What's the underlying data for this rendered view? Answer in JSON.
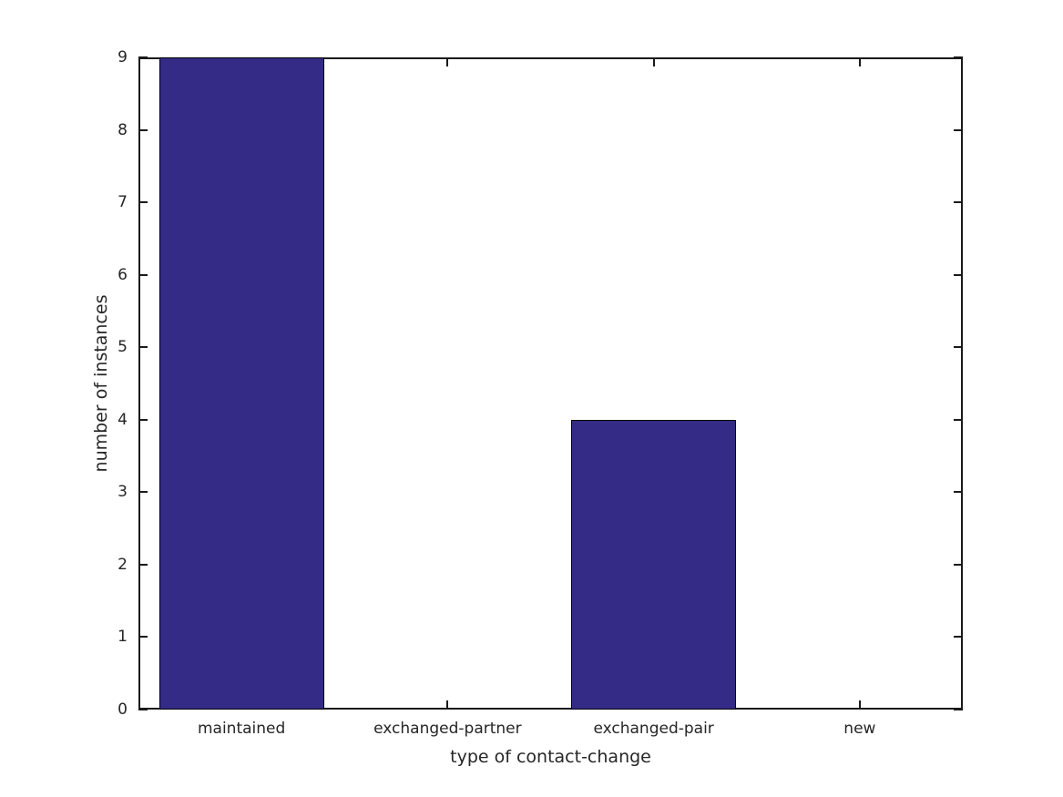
{
  "chart_data": {
    "type": "bar",
    "categories": [
      "maintained",
      "exchanged-partner",
      "exchanged-pair",
      "new"
    ],
    "values": [
      9,
      0,
      4,
      0
    ],
    "title": "",
    "xlabel": "type of contact-change",
    "ylabel": "number of instances",
    "ylim": [
      0,
      9
    ],
    "yticks": [
      0,
      1,
      2,
      3,
      4,
      5,
      6,
      7,
      8,
      9
    ],
    "bar_width_fraction": 0.8,
    "grid": false,
    "legend_position": "none",
    "colors": {
      "bar_fill": "#342B87",
      "bar_edge": "#000000",
      "axis": "#1a1a1a",
      "text": "#262626",
      "background": "#ffffff"
    }
  }
}
